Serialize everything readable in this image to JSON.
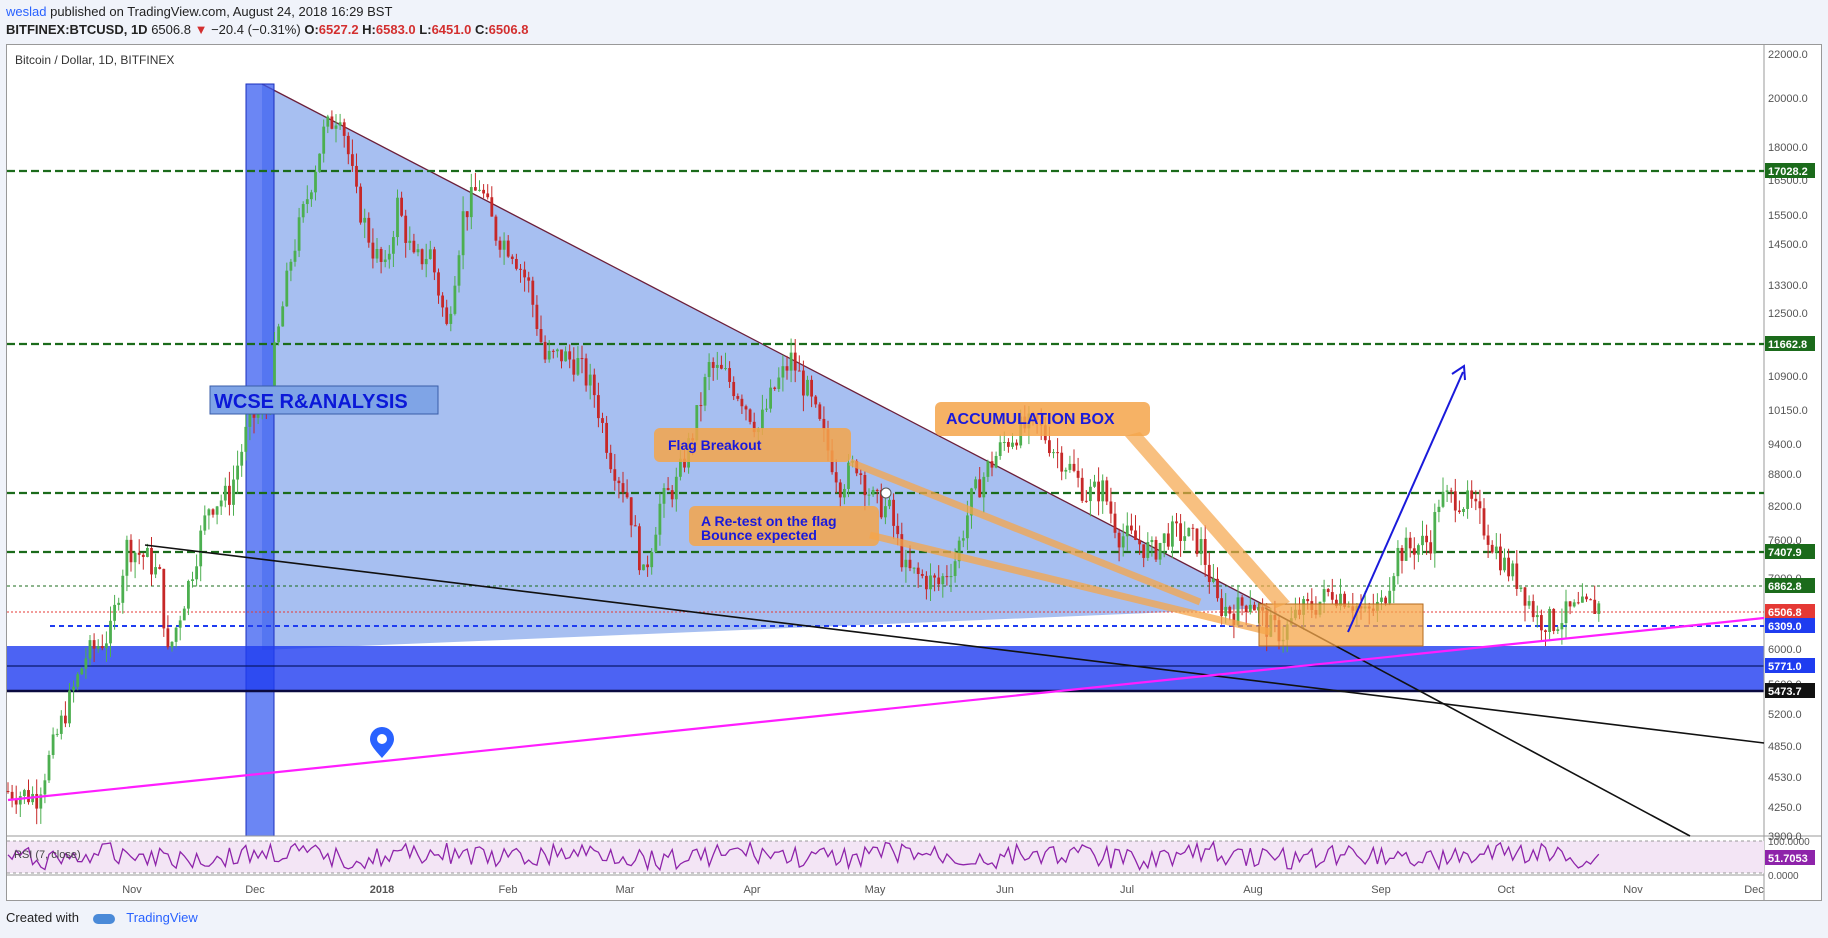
{
  "header": {
    "author": "weslad",
    "published": "published on TradingView.com, August 24, 2018 16:29 BST",
    "symbol": "BITFINEX:BTCUSD, 1D",
    "last": "6506.8",
    "arrow": "▼",
    "change": "−20.4 (−0.31%)",
    "o_label": "O:",
    "o": "6527.2",
    "h_label": "H:",
    "h": "6583.0",
    "l_label": "L:",
    "l": "6451.0",
    "c_label": "C:",
    "c": "6506.8"
  },
  "footer": {
    "created": "Created with",
    "brand": "TradingView"
  },
  "colors": {
    "up": "#4caf50",
    "down": "#c62828",
    "triangle": "#6d95e8",
    "zone": "#1f3cf0",
    "orange": "#f5a54a",
    "magenta": "#ff1eff",
    "dashed_green": "#1b6b1b"
  },
  "chart_data": {
    "type": "candlestick",
    "title": "Bitcoin / Dollar, 1D, BITFINEX",
    "y_scale": "log",
    "y_range": [
      3900,
      22000
    ],
    "y_ticks": [
      "22000.0",
      "20000.0",
      "18000.0",
      "16500.0",
      "15500.0",
      "14500.0",
      "13300.0",
      "12500.0",
      "11600.0",
      "10900.0",
      "10150.0",
      "9400.0",
      "8800.0",
      "8200.0",
      "7600.0",
      "7000.0",
      "6000.0",
      "5600.0",
      "5200.0",
      "4850.0",
      "4530.0",
      "4250.0",
      "3900.0"
    ],
    "x_ticks": [
      "Nov",
      "Dec",
      "2018",
      "Feb",
      "Mar",
      "Apr",
      "May",
      "Jun",
      "Jul",
      "Aug",
      "Sep",
      "Oct",
      "Nov",
      "Dec"
    ],
    "price_labels": [
      {
        "value": "17028.2",
        "color": "#1b6b1b"
      },
      {
        "value": "11662.8",
        "color": "#1b6b1b"
      },
      {
        "value": "7407.9",
        "color": "#1b6b1b"
      },
      {
        "value": "6862.8",
        "color": "#1b6b1b"
      },
      {
        "value": "6506.8",
        "color": "#e53935"
      },
      {
        "value": "6309.0",
        "color": "#1f3cf0"
      },
      {
        "value": "5771.0",
        "color": "#1f3cf0"
      },
      {
        "value": "5473.7",
        "color": "#111111"
      }
    ],
    "horizontal_levels": [
      17028.2,
      11662.8,
      8450,
      7407.9,
      6862.8
    ],
    "annotations": [
      "WCSE R&ANALYSIS",
      "Flag Breakout",
      "A Re-test on the flag",
      "Bounce expected",
      "ACCUMULATION BOX"
    ],
    "rsi": {
      "label": "RSI (7, close)",
      "value": "51.7053",
      "ticks": [
        "100.0000",
        "0.0000"
      ]
    }
  }
}
